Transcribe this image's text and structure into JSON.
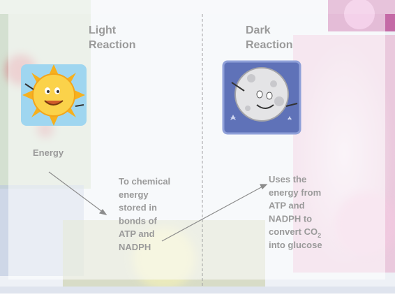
{
  "slide": {
    "light_heading": [
      "Light",
      "Reaction"
    ],
    "dark_heading": [
      "Dark",
      "Reaction"
    ],
    "energy_label": "Energy",
    "light_text": [
      "To chemical",
      "energy",
      "stored in",
      "bonds of",
      "ATP and",
      "NADPH"
    ],
    "dark_text": [
      "Uses the",
      "energy from",
      "ATP and",
      "NADPH to"
    ],
    "dark_co2": {
      "before": "convert CO",
      "sub": "2"
    },
    "dark_last": "into glucose"
  }
}
